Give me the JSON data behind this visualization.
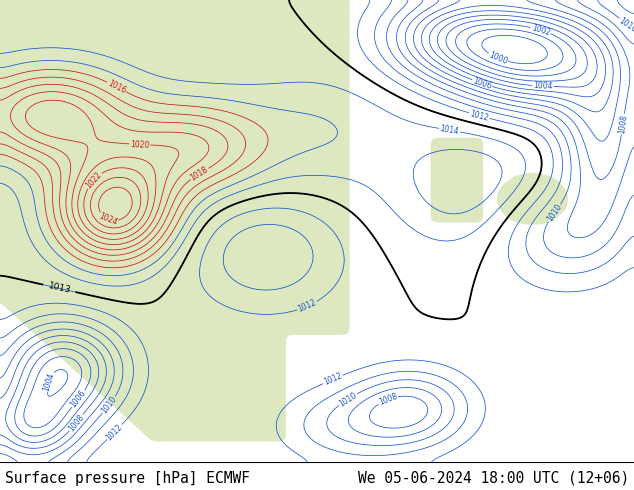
{
  "title_left": "Surface pressure [hPa] ECMWF",
  "title_right": "We 05-06-2024 18:00 UTC (12+06)",
  "bg_color": "#c8ddf0",
  "land_color_main": "#dde8c0",
  "land_color_alt": "#e8edcc",
  "text_color": "#000000",
  "footer_fontsize": 10.5,
  "footer_bg": "#ffffff",
  "figsize": [
    6.34,
    4.9
  ],
  "dpi": 100,
  "contour_red": "#cc0000",
  "contour_blue": "#0044cc",
  "contour_black": "#000000",
  "lw_thin": 0.55,
  "lw_thick": 1.3,
  "label_fontsize": 5.5
}
